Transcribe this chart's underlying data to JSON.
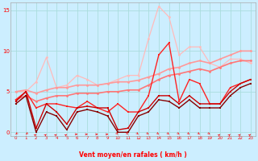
{
  "bg_color": "#cceeff",
  "grid_color": "#aadddd",
  "xlabel": "Vent moyen/en rafales ( km/h )",
  "xlim": [
    -0.5,
    23.5
  ],
  "ylim": [
    -0.5,
    16
  ],
  "yticks": [
    0,
    5,
    10,
    15
  ],
  "xticks": [
    0,
    1,
    2,
    3,
    4,
    5,
    6,
    7,
    8,
    9,
    10,
    11,
    12,
    13,
    14,
    15,
    16,
    17,
    18,
    19,
    20,
    21,
    22,
    23
  ],
  "series": [
    {
      "x": [
        0,
        1,
        2,
        3,
        4,
        5,
        6,
        7,
        8,
        9,
        10,
        11,
        12,
        13,
        14,
        15,
        16,
        17,
        18,
        19,
        20,
        21,
        22,
        23
      ],
      "y": [
        5.0,
        5.0,
        6.2,
        9.2,
        5.5,
        5.8,
        7.0,
        6.5,
        5.8,
        6.0,
        6.5,
        7.0,
        7.0,
        11.5,
        15.5,
        14.2,
        9.5,
        10.5,
        10.5,
        8.5,
        8.0,
        9.0,
        9.0,
        8.5
      ],
      "color": "#ffbbbb",
      "lw": 0.9,
      "marker": "o",
      "ms": 2.0
    },
    {
      "x": [
        0,
        1,
        2,
        3,
        4,
        5,
        6,
        7,
        8,
        9,
        10,
        11,
        12,
        13,
        14,
        15,
        16,
        17,
        18,
        19,
        20,
        21,
        22,
        23
      ],
      "y": [
        5.0,
        5.2,
        4.8,
        5.2,
        5.5,
        5.5,
        5.8,
        5.8,
        5.8,
        6.0,
        6.2,
        6.2,
        6.4,
        6.8,
        7.2,
        7.8,
        8.0,
        8.5,
        8.8,
        8.5,
        9.0,
        9.5,
        10.0,
        10.0
      ],
      "color": "#ff9999",
      "lw": 1.2,
      "marker": "o",
      "ms": 2.0
    },
    {
      "x": [
        0,
        1,
        2,
        3,
        4,
        5,
        6,
        7,
        8,
        9,
        10,
        11,
        12,
        13,
        14,
        15,
        16,
        17,
        18,
        19,
        20,
        21,
        22,
        23
      ],
      "y": [
        4.0,
        4.5,
        3.8,
        4.2,
        4.5,
        4.5,
        4.8,
        4.8,
        4.8,
        5.0,
        5.0,
        5.2,
        5.2,
        5.8,
        6.5,
        7.0,
        7.2,
        7.5,
        7.8,
        7.5,
        8.0,
        8.5,
        8.8,
        8.8
      ],
      "color": "#ff7777",
      "lw": 1.2,
      "marker": "o",
      "ms": 2.0
    },
    {
      "x": [
        0,
        1,
        2,
        3,
        4,
        5,
        6,
        7,
        8,
        9,
        10,
        11,
        12,
        13,
        14,
        15,
        16,
        17,
        18,
        19,
        20,
        21,
        22,
        23
      ],
      "y": [
        4.0,
        5.0,
        3.0,
        3.5,
        3.5,
        3.2,
        3.0,
        3.8,
        3.0,
        2.5,
        3.5,
        2.5,
        2.5,
        4.5,
        9.5,
        11.0,
        3.8,
        6.5,
        6.0,
        3.5,
        3.5,
        5.5,
        6.0,
        6.5
      ],
      "color": "#ff2222",
      "lw": 1.0,
      "marker": "s",
      "ms": 2.0
    },
    {
      "x": [
        0,
        1,
        2,
        3,
        4,
        5,
        6,
        7,
        8,
        9,
        10,
        11,
        12,
        13,
        14,
        15,
        16,
        17,
        18,
        19,
        20,
        21,
        22,
        23
      ],
      "y": [
        3.8,
        5.0,
        0.5,
        3.5,
        2.5,
        1.0,
        3.0,
        3.2,
        3.0,
        3.0,
        0.3,
        0.5,
        2.5,
        3.0,
        4.5,
        4.5,
        3.5,
        4.5,
        3.5,
        3.5,
        3.5,
        5.0,
        6.0,
        6.5
      ],
      "color": "#cc0000",
      "lw": 1.0,
      "marker": "s",
      "ms": 2.0
    },
    {
      "x": [
        0,
        1,
        2,
        3,
        4,
        5,
        6,
        7,
        8,
        9,
        10,
        11,
        12,
        13,
        14,
        15,
        16,
        17,
        18,
        19,
        20,
        21,
        22,
        23
      ],
      "y": [
        3.5,
        4.5,
        0.0,
        2.5,
        2.0,
        0.3,
        2.5,
        2.8,
        2.5,
        2.0,
        0.0,
        0.0,
        2.0,
        2.5,
        4.0,
        3.8,
        3.0,
        4.0,
        3.0,
        3.0,
        3.0,
        4.5,
        5.5,
        6.0
      ],
      "color": "#880000",
      "lw": 1.0,
      "marker": "s",
      "ms": 2.0
    }
  ],
  "wind_angles_deg": [
    225,
    225,
    45,
    45,
    45,
    45,
    90,
    90,
    90,
    90,
    135,
    135,
    135,
    135,
    135,
    135,
    135,
    135,
    135,
    135,
    45,
    45,
    45,
    45
  ]
}
